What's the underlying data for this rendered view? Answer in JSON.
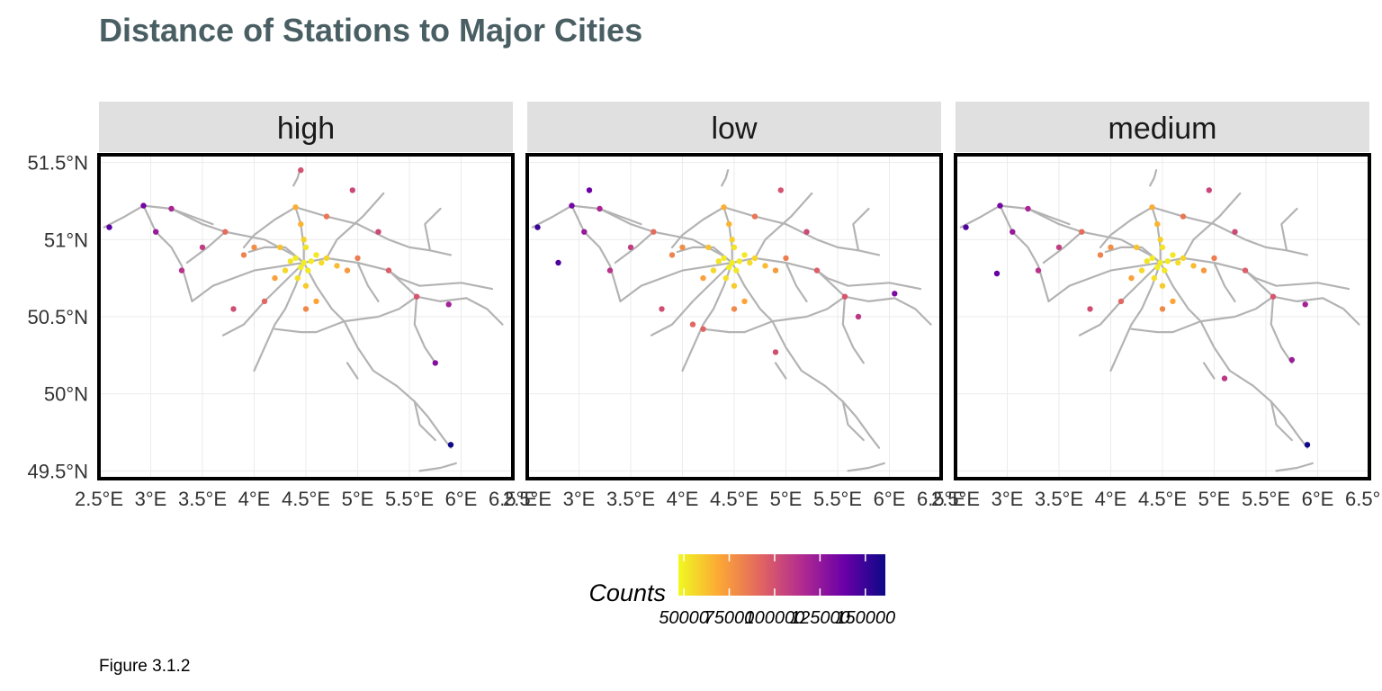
{
  "chart_data": {
    "type": "scatter",
    "title": "Distance of Stations to Major Cities",
    "caption": "Figure 3.1.2",
    "facets": [
      "high",
      "low",
      "medium"
    ],
    "x_ticks": [
      "2.5°E",
      "3°E",
      "3.5°E",
      "4°E",
      "4.5°E",
      "5°E",
      "5.5°E",
      "6°E",
      "6.5°E"
    ],
    "x_tick_values": [
      2.5,
      3,
      3.5,
      4,
      4.5,
      5,
      5.5,
      6,
      6.5
    ],
    "y_ticks": [
      "51.5°N",
      "51°N",
      "50.5°N",
      "50°N",
      "49.5°N"
    ],
    "y_tick_values": [
      51.5,
      51,
      50.5,
      50,
      49.5
    ],
    "xlim": [
      2.5,
      6.5
    ],
    "ylim": [
      49.45,
      51.55
    ],
    "grid": true,
    "legend": {
      "title": "Counts",
      "position": "bottom",
      "labels": [
        "50000",
        "75000",
        "100000",
        "125000",
        "150000"
      ],
      "values": [
        50000,
        75000,
        100000,
        125000,
        150000
      ],
      "range": [
        47000,
        161000
      ],
      "palette": "plasma (reversed)"
    },
    "colors": {
      "title": "#4a5f63",
      "strip": "#e0e0e0",
      "rail": "#b3b3b3",
      "panel_border": "#000000",
      "grid": "#ebebeb",
      "gradient": [
        "#f0f921",
        "#fca636",
        "#e16462",
        "#b12a90",
        "#6a00a8",
        "#0d0887"
      ]
    },
    "rail_lines": [
      [
        [
          2.55,
          51.08
        ],
        [
          2.75,
          51.15
        ],
        [
          2.93,
          51.22
        ],
        [
          3.2,
          51.2
        ],
        [
          3.5,
          51.1
        ],
        [
          3.72,
          51.05
        ],
        [
          4.1,
          51.0
        ],
        [
          4.38,
          50.9
        ],
        [
          4.48,
          50.85
        ]
      ],
      [
        [
          2.93,
          51.22
        ],
        [
          3.05,
          51.05
        ],
        [
          3.2,
          50.95
        ],
        [
          3.3,
          50.83
        ],
        [
          3.4,
          50.6
        ]
      ],
      [
        [
          3.72,
          51.05
        ],
        [
          3.55,
          50.95
        ],
        [
          3.35,
          50.85
        ]
      ],
      [
        [
          4.4,
          51.21
        ],
        [
          4.45,
          51.1
        ],
        [
          4.48,
          50.95
        ],
        [
          4.48,
          50.85
        ]
      ],
      [
        [
          4.4,
          51.21
        ],
        [
          4.2,
          51.13
        ],
        [
          4.0,
          51.03
        ],
        [
          3.9,
          50.95
        ]
      ],
      [
        [
          4.4,
          51.21
        ],
        [
          4.7,
          51.15
        ],
        [
          5.0,
          51.1
        ],
        [
          5.3,
          51.0
        ],
        [
          5.5,
          50.95
        ],
        [
          5.7,
          50.93
        ],
        [
          5.9,
          50.9
        ]
      ],
      [
        [
          4.48,
          50.85
        ],
        [
          4.7,
          50.88
        ],
        [
          5.0,
          50.85
        ],
        [
          5.3,
          50.8
        ],
        [
          5.57,
          50.63
        ],
        [
          5.8,
          50.6
        ],
        [
          6.05,
          50.62
        ]
      ],
      [
        [
          4.48,
          50.85
        ],
        [
          4.4,
          50.7
        ],
        [
          4.3,
          50.55
        ],
        [
          4.2,
          50.45
        ]
      ],
      [
        [
          4.48,
          50.85
        ],
        [
          4.6,
          50.7
        ],
        [
          4.75,
          50.55
        ],
        [
          4.87,
          50.47
        ],
        [
          5.0,
          50.3
        ],
        [
          5.15,
          50.15
        ],
        [
          5.38,
          50.05
        ],
        [
          5.55,
          49.95
        ],
        [
          5.68,
          49.85
        ],
        [
          5.82,
          49.72
        ],
        [
          5.9,
          49.65
        ]
      ],
      [
        [
          4.48,
          50.85
        ],
        [
          4.0,
          50.8
        ],
        [
          3.6,
          50.7
        ],
        [
          3.4,
          50.6
        ]
      ],
      [
        [
          4.48,
          50.85
        ],
        [
          4.1,
          50.6
        ],
        [
          3.9,
          50.45
        ],
        [
          3.7,
          50.38
        ]
      ],
      [
        [
          4.87,
          50.47
        ],
        [
          4.6,
          50.4
        ],
        [
          4.45,
          50.4
        ],
        [
          4.2,
          50.42
        ]
      ],
      [
        [
          5.57,
          50.63
        ],
        [
          5.4,
          50.55
        ],
        [
          5.2,
          50.5
        ],
        [
          4.87,
          50.47
        ]
      ],
      [
        [
          5.57,
          50.63
        ],
        [
          5.55,
          50.45
        ],
        [
          5.65,
          50.3
        ],
        [
          5.75,
          50.2
        ]
      ],
      [
        [
          4.48,
          50.85
        ],
        [
          4.3,
          50.95
        ],
        [
          4.1,
          50.95
        ],
        [
          3.95,
          50.92
        ]
      ],
      [
        [
          4.7,
          50.88
        ],
        [
          4.8,
          51.0
        ],
        [
          5.05,
          51.15
        ],
        [
          5.25,
          51.3
        ]
      ],
      [
        [
          5.0,
          50.85
        ],
        [
          5.1,
          50.7
        ],
        [
          5.2,
          50.6
        ]
      ],
      [
        [
          4.38,
          51.35
        ],
        [
          4.42,
          51.4
        ],
        [
          4.44,
          51.45
        ]
      ],
      [
        [
          5.7,
          50.93
        ],
        [
          5.65,
          51.1
        ],
        [
          5.8,
          51.2
        ]
      ],
      [
        [
          5.3,
          50.8
        ],
        [
          5.4,
          50.75
        ],
        [
          5.6,
          50.7
        ],
        [
          6.0,
          50.72
        ],
        [
          6.3,
          50.68
        ]
      ],
      [
        [
          3.2,
          51.2
        ],
        [
          3.4,
          51.15
        ],
        [
          3.6,
          51.1
        ]
      ],
      [
        [
          4.9,
          50.2
        ],
        [
          5.0,
          50.1
        ]
      ],
      [
        [
          5.95,
          49.55
        ],
        [
          5.8,
          49.52
        ],
        [
          5.6,
          49.5
        ]
      ],
      [
        [
          6.05,
          50.62
        ],
        [
          6.25,
          50.55
        ],
        [
          6.4,
          50.45
        ]
      ],
      [
        [
          4.2,
          50.45
        ],
        [
          4.1,
          50.3
        ],
        [
          4.0,
          50.15
        ]
      ],
      [
        [
          5.55,
          49.95
        ],
        [
          5.6,
          49.8
        ],
        [
          5.75,
          49.7
        ]
      ]
    ],
    "series": [
      {
        "name": "high",
        "points": [
          [
            4.48,
            50.85,
            50000
          ],
          [
            4.45,
            50.82,
            50000
          ],
          [
            4.55,
            50.86,
            51000
          ],
          [
            4.4,
            50.88,
            50500
          ],
          [
            4.52,
            50.8,
            51500
          ],
          [
            4.6,
            50.9,
            52000
          ],
          [
            4.35,
            50.86,
            52500
          ],
          [
            4.5,
            50.95,
            53000
          ],
          [
            4.42,
            50.75,
            54000
          ],
          [
            4.65,
            50.85,
            55000
          ],
          [
            4.3,
            50.8,
            56000
          ],
          [
            4.7,
            50.88,
            57000
          ],
          [
            4.48,
            51.0,
            58000
          ],
          [
            4.5,
            50.7,
            60000
          ],
          [
            4.25,
            50.95,
            62000
          ],
          [
            4.8,
            50.83,
            64000
          ],
          [
            4.45,
            51.1,
            66000
          ],
          [
            4.4,
            51.21,
            68000
          ],
          [
            4.6,
            50.6,
            70000
          ],
          [
            4.2,
            50.75,
            72000
          ],
          [
            4.9,
            50.8,
            74000
          ],
          [
            4.0,
            50.95,
            78000
          ],
          [
            4.5,
            50.55,
            80000
          ],
          [
            3.9,
            50.9,
            82000
          ],
          [
            5.0,
            50.88,
            84000
          ],
          [
            4.7,
            51.15,
            86000
          ],
          [
            3.72,
            51.05,
            90000
          ],
          [
            4.1,
            50.6,
            92000
          ],
          [
            5.3,
            50.8,
            95000
          ],
          [
            5.57,
            50.63,
            98000
          ],
          [
            4.45,
            51.45,
            99000
          ],
          [
            3.8,
            50.55,
            101000
          ],
          [
            5.2,
            51.05,
            103000
          ],
          [
            3.5,
            50.95,
            108000
          ],
          [
            4.95,
            51.32,
            104000
          ],
          [
            3.3,
            50.8,
            112000
          ],
          [
            3.2,
            51.2,
            118000
          ],
          [
            5.88,
            50.58,
            120000
          ],
          [
            3.05,
            51.05,
            124000
          ],
          [
            5.75,
            50.2,
            130000
          ],
          [
            2.93,
            51.22,
            135000
          ],
          [
            2.6,
            51.08,
            142000
          ],
          [
            5.9,
            49.67,
            160000
          ]
        ]
      },
      {
        "name": "low",
        "points": [
          [
            4.48,
            50.85,
            50000
          ],
          [
            4.45,
            50.82,
            50000
          ],
          [
            4.55,
            50.86,
            51000
          ],
          [
            4.4,
            50.88,
            50500
          ],
          [
            4.52,
            50.8,
            51500
          ],
          [
            4.6,
            50.9,
            52000
          ],
          [
            4.35,
            50.86,
            52500
          ],
          [
            4.5,
            50.95,
            53000
          ],
          [
            4.42,
            50.75,
            54000
          ],
          [
            4.65,
            50.85,
            55000
          ],
          [
            4.3,
            50.8,
            56000
          ],
          [
            4.7,
            50.88,
            57000
          ],
          [
            4.48,
            51.0,
            58000
          ],
          [
            4.5,
            50.7,
            60000
          ],
          [
            4.25,
            50.95,
            62000
          ],
          [
            4.8,
            50.83,
            64000
          ],
          [
            4.45,
            51.1,
            66000
          ],
          [
            4.4,
            51.21,
            68000
          ],
          [
            4.6,
            50.6,
            70000
          ],
          [
            4.2,
            50.75,
            72000
          ],
          [
            4.9,
            50.8,
            74000
          ],
          [
            4.0,
            50.95,
            78000
          ],
          [
            4.5,
            50.55,
            80000
          ],
          [
            3.9,
            50.9,
            82000
          ],
          [
            5.0,
            50.88,
            84000
          ],
          [
            4.7,
            51.15,
            86000
          ],
          [
            3.72,
            51.05,
            90000
          ],
          [
            4.1,
            50.45,
            92000
          ],
          [
            4.2,
            50.42,
            93000
          ],
          [
            5.3,
            50.8,
            95000
          ],
          [
            5.57,
            50.63,
            98000
          ],
          [
            4.95,
            51.32,
            99000
          ],
          [
            4.9,
            50.27,
            101000
          ],
          [
            3.8,
            50.55,
            101000
          ],
          [
            5.2,
            51.05,
            103000
          ],
          [
            3.5,
            50.95,
            108000
          ],
          [
            5.7,
            50.5,
            110000
          ],
          [
            3.3,
            50.8,
            112000
          ],
          [
            3.2,
            51.2,
            118000
          ],
          [
            3.05,
            51.05,
            124000
          ],
          [
            6.05,
            50.65,
            132000
          ],
          [
            2.93,
            51.22,
            135000
          ],
          [
            3.1,
            51.32,
            138000
          ],
          [
            2.8,
            50.85,
            145000
          ],
          [
            2.6,
            51.08,
            150000
          ]
        ]
      },
      {
        "name": "medium",
        "points": [
          [
            4.48,
            50.85,
            50000
          ],
          [
            4.45,
            50.82,
            50000
          ],
          [
            4.55,
            50.86,
            51000
          ],
          [
            4.4,
            50.88,
            50500
          ],
          [
            4.52,
            50.8,
            51500
          ],
          [
            4.6,
            50.9,
            52000
          ],
          [
            4.35,
            50.86,
            52500
          ],
          [
            4.5,
            50.95,
            53000
          ],
          [
            4.42,
            50.75,
            54000
          ],
          [
            4.65,
            50.85,
            55000
          ],
          [
            4.3,
            50.8,
            56000
          ],
          [
            4.7,
            50.88,
            57000
          ],
          [
            4.48,
            51.0,
            58000
          ],
          [
            4.5,
            50.7,
            60000
          ],
          [
            4.25,
            50.95,
            62000
          ],
          [
            4.8,
            50.83,
            64000
          ],
          [
            4.45,
            51.1,
            66000
          ],
          [
            4.4,
            51.21,
            68000
          ],
          [
            4.6,
            50.6,
            70000
          ],
          [
            4.2,
            50.75,
            72000
          ],
          [
            4.9,
            50.8,
            74000
          ],
          [
            4.0,
            50.95,
            78000
          ],
          [
            4.5,
            50.55,
            80000
          ],
          [
            3.9,
            50.9,
            82000
          ],
          [
            5.0,
            50.88,
            84000
          ],
          [
            4.7,
            51.15,
            86000
          ],
          [
            3.72,
            51.05,
            90000
          ],
          [
            4.1,
            50.6,
            92000
          ],
          [
            5.3,
            50.8,
            95000
          ],
          [
            5.57,
            50.63,
            98000
          ],
          [
            3.8,
            50.55,
            101000
          ],
          [
            5.2,
            51.05,
            103000
          ],
          [
            4.95,
            51.32,
            104000
          ],
          [
            3.5,
            50.95,
            108000
          ],
          [
            5.1,
            50.1,
            110000
          ],
          [
            3.3,
            50.8,
            112000
          ],
          [
            3.2,
            51.2,
            118000
          ],
          [
            5.88,
            50.58,
            120000
          ],
          [
            5.75,
            50.22,
            122000
          ],
          [
            3.05,
            51.05,
            124000
          ],
          [
            2.93,
            51.22,
            135000
          ],
          [
            2.9,
            50.78,
            140000
          ],
          [
            2.6,
            51.08,
            145000
          ],
          [
            5.9,
            49.67,
            160000
          ]
        ]
      }
    ]
  }
}
